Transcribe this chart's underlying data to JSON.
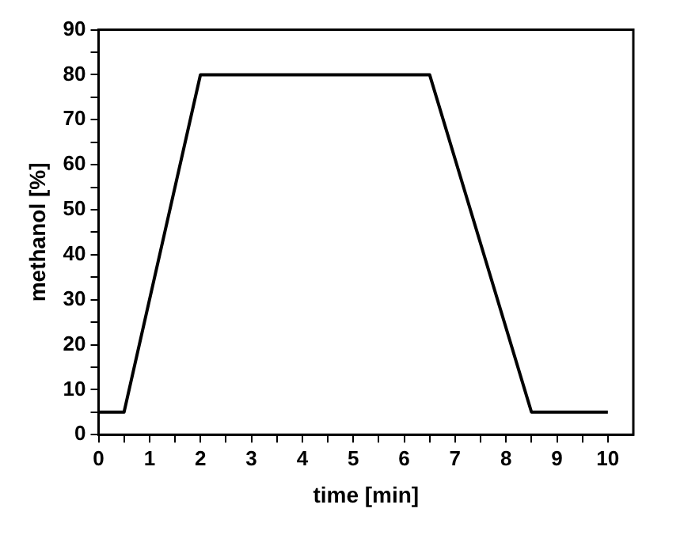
{
  "chart_data": {
    "type": "line",
    "xlabel": "time [min]",
    "ylabel": "methanol [%]",
    "x": [
      0,
      0.5,
      2,
      6.5,
      8.5,
      10
    ],
    "series": [
      {
        "color": "#000000",
        "values": [
          5,
          5,
          80,
          80,
          5,
          5
        ]
      }
    ],
    "xlim": [
      0,
      10.5
    ],
    "xticks": [
      0,
      {
        "value": 0.5,
        "label": null
      },
      1,
      {
        "value": 1.5,
        "label": null
      },
      2,
      {
        "value": 2.5,
        "label": null
      },
      3,
      {
        "value": 3.5,
        "label": null
      },
      4,
      {
        "value": 4.5,
        "label": null
      },
      5,
      {
        "value": 5.5,
        "label": null
      },
      6,
      {
        "value": 6.5,
        "label": null
      },
      7,
      {
        "value": 7.5,
        "label": null
      },
      8,
      {
        "value": 8.5,
        "label": null
      },
      9,
      {
        "value": 9.5,
        "label": null
      },
      10
    ],
    "ylim": [
      0,
      90
    ],
    "yticks": [
      0,
      {
        "value": 5,
        "label": null
      },
      10,
      {
        "value": 15,
        "label": null
      },
      20,
      {
        "value": 25,
        "label": null
      },
      30,
      {
        "value": 35,
        "label": null
      },
      40,
      {
        "value": 45,
        "label": null
      },
      50,
      {
        "value": 55,
        "label": null
      },
      60,
      {
        "value": 65,
        "label": null
      },
      70,
      {
        "value": 75,
        "label": null
      },
      80,
      {
        "value": 85,
        "label": null
      },
      90
    ],
    "grid": false,
    "legend": false,
    "marker": "none",
    "line_style": "solid"
  }
}
